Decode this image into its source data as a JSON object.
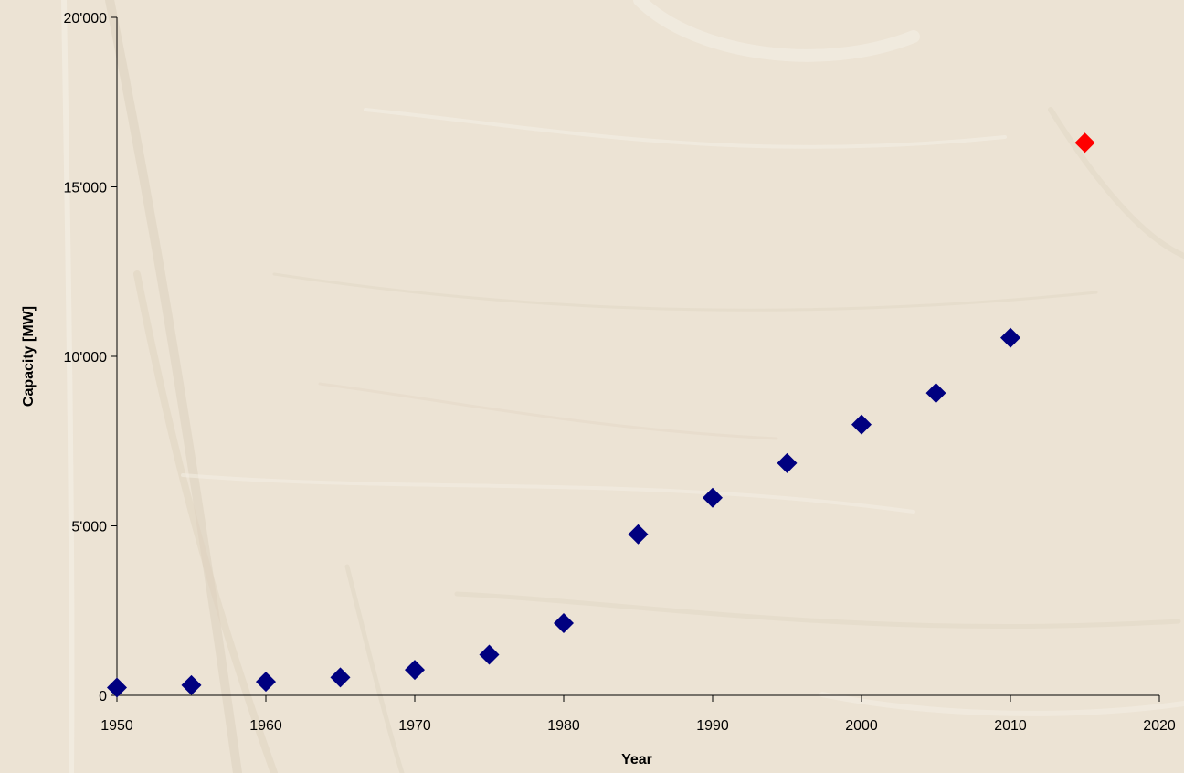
{
  "colors": {
    "background": "#ece3d4",
    "texture_light": "#f4eee4",
    "texture_dark": "#ddd1bd",
    "axis": "#000000",
    "series_main": "#000080",
    "series_highlight": "#ff0000"
  },
  "chart_data": {
    "type": "scatter",
    "title": "",
    "xlabel": "Year",
    "ylabel": "Capacity [MW]",
    "xlim": [
      1950,
      2020
    ],
    "ylim": [
      0,
      20000
    ],
    "x_ticks": [
      1950,
      1960,
      1970,
      1980,
      1990,
      2000,
      2010,
      2020
    ],
    "x_tick_labels": [
      "1950",
      "1960",
      "1970",
      "1980",
      "1990",
      "2000",
      "2010",
      "2020"
    ],
    "y_ticks": [
      0,
      5000,
      10000,
      15000,
      20000
    ],
    "y_tick_labels": [
      "0",
      "5'000",
      "10'000",
      "15'000",
      "20'000"
    ],
    "grid": false,
    "legend": "none",
    "marker": "diamond",
    "series": [
      {
        "color": "#000080",
        "points": [
          {
            "x": 1950,
            "y": 230
          },
          {
            "x": 1955,
            "y": 300
          },
          {
            "x": 1960,
            "y": 400
          },
          {
            "x": 1965,
            "y": 530
          },
          {
            "x": 1970,
            "y": 750
          },
          {
            "x": 1975,
            "y": 1200
          },
          {
            "x": 1980,
            "y": 2130
          },
          {
            "x": 1985,
            "y": 4750
          },
          {
            "x": 1990,
            "y": 5830
          },
          {
            "x": 1995,
            "y": 6850
          },
          {
            "x": 2000,
            "y": 7990
          },
          {
            "x": 2005,
            "y": 8920
          },
          {
            "x": 2010,
            "y": 10550
          }
        ]
      },
      {
        "color": "#ff0000",
        "points": [
          {
            "x": 2015,
            "y": 16300
          }
        ]
      }
    ]
  }
}
